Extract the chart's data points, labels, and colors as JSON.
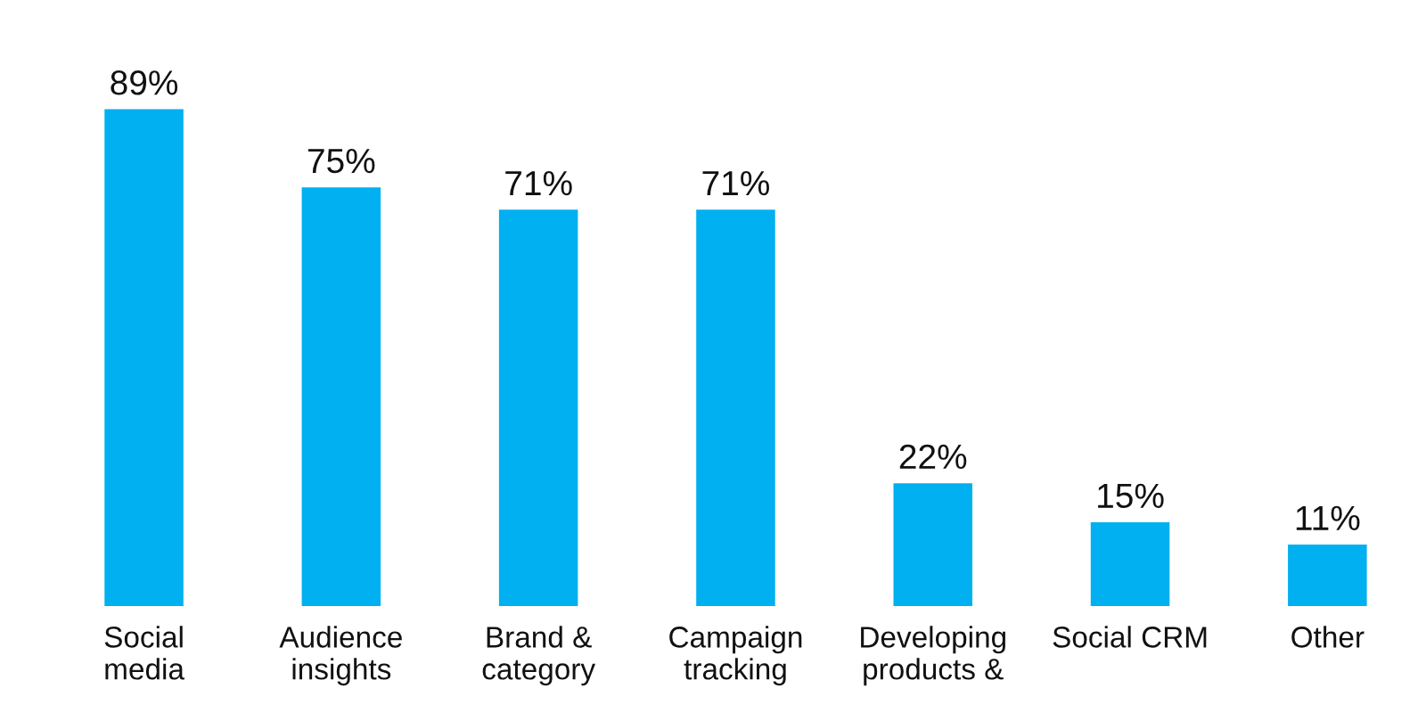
{
  "chart_data": {
    "type": "bar",
    "categories": [
      "Social\nmedia",
      "Audience\ninsights",
      "Brand &\ncategory",
      "Campaign\ntracking",
      "Developing\nproducts &",
      "Social CRM",
      "Other"
    ],
    "values": [
      89,
      75,
      71,
      71,
      22,
      15,
      11
    ],
    "value_labels": [
      "89%",
      "75%",
      "71%",
      "71%",
      "22%",
      "15%",
      "11%"
    ],
    "color": "#00b0f0",
    "grid": false,
    "legend": false
  }
}
